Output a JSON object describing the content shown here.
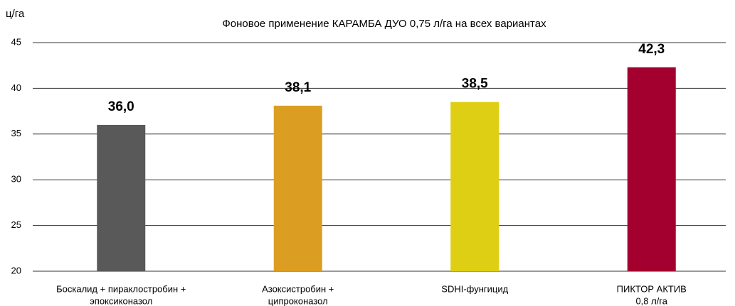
{
  "chart_data": {
    "type": "bar",
    "title": "Фоновое применение КАРАМБА ДУО 0,75 л/га на всех вариантах",
    "y_label": "ц/га",
    "categories": [
      [
        "Боскалид + пираклостробин +",
        "эпоксиконазол"
      ],
      [
        "Азоксистробин +",
        "ципроконазол"
      ],
      [
        "SDHI-фунгицид"
      ],
      [
        "ПИКТОР АКТИВ",
        "0,8 л/га"
      ]
    ],
    "values": [
      36.0,
      38.1,
      38.5,
      42.3
    ],
    "value_labels": [
      "36,0",
      "38,1",
      "38,5",
      "42,3"
    ],
    "colors": [
      "#595959",
      "#dc9e22",
      "#dfcf14",
      "#a3002f"
    ],
    "ylim": [
      20,
      45
    ],
    "yticks": [
      20,
      25,
      30,
      35,
      40,
      45
    ],
    "grid": true
  }
}
